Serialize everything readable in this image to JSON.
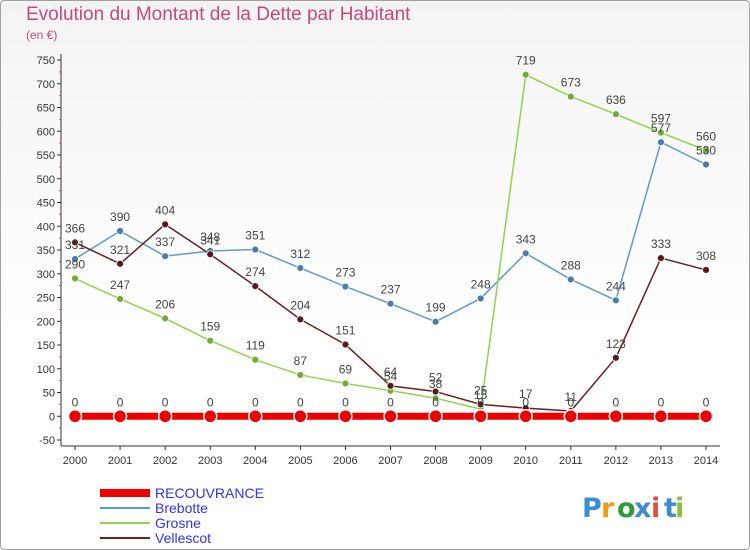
{
  "title": "Evolution du Montant de la Dette par Habitant",
  "unit": "(en €)",
  "logo": {
    "text": "Proxiti",
    "colors": [
      "#3b8dd0",
      "#f39c12",
      "#2e9a3c",
      "#3b8dd0",
      "#e74c3c",
      "#3b8dd0",
      "#8fbf3a"
    ]
  },
  "chart_data": {
    "type": "line",
    "title": "Evolution du Montant de la Dette par Habitant",
    "ylabel": "(en €)",
    "ylim": [
      -50,
      750
    ],
    "yticks": [
      -50,
      0,
      50,
      100,
      150,
      200,
      250,
      300,
      350,
      400,
      450,
      500,
      550,
      600,
      650,
      700,
      750
    ],
    "x": [
      2000,
      2001,
      2002,
      2003,
      2004,
      2005,
      2006,
      2007,
      2008,
      2009,
      2010,
      2011,
      2012,
      2013,
      2014
    ],
    "grid": false,
    "legend_position": "bottom-left",
    "series": [
      {
        "name": "RECOUVRANCE",
        "color": "#ee0000",
        "width": 7,
        "values": [
          0,
          0,
          0,
          0,
          0,
          0,
          0,
          0,
          0,
          0,
          0,
          0,
          0,
          0,
          0
        ]
      },
      {
        "name": "Brebotte",
        "color": "#5b9bd5",
        "width": 1.5,
        "values": [
          331,
          390,
          337,
          348,
          351,
          312,
          273,
          237,
          199,
          248,
          343,
          288,
          244,
          577,
          530
        ]
      },
      {
        "name": "Grosne",
        "color": "#8fd44a",
        "width": 1.5,
        "values": [
          290,
          247,
          206,
          159,
          119,
          87,
          69,
          54,
          38,
          15,
          719,
          673,
          636,
          597,
          560
        ]
      },
      {
        "name": "Vellescot",
        "color": "#6b1e1e",
        "width": 1.5,
        "values": [
          366,
          321,
          404,
          341,
          274,
          204,
          151,
          64,
          52,
          25,
          17,
          11,
          123,
          333,
          308
        ]
      }
    ],
    "point_labels": {
      "RECOUVRANCE": [
        "0",
        "0",
        "0",
        "0",
        "0",
        "0",
        "0",
        "0",
        "0",
        "0",
        "0",
        "0",
        "0",
        "0",
        "0"
      ],
      "Brebotte": [
        "331",
        "390",
        "337",
        "348",
        "351",
        "312",
        "273",
        "237",
        "199",
        "248",
        "343",
        "288",
        "244",
        "577",
        "530"
      ],
      "Grosne": [
        "290",
        "247",
        "206",
        "159",
        "119",
        "87",
        "69",
        "54",
        "38",
        "15",
        "719",
        "673",
        "636",
        "597",
        "560"
      ],
      "Vellescot": [
        "366",
        "321",
        "404",
        "341",
        "274",
        "204",
        "151",
        "64",
        "52",
        "25",
        "17",
        "11",
        "123",
        "333",
        "308"
      ]
    }
  }
}
